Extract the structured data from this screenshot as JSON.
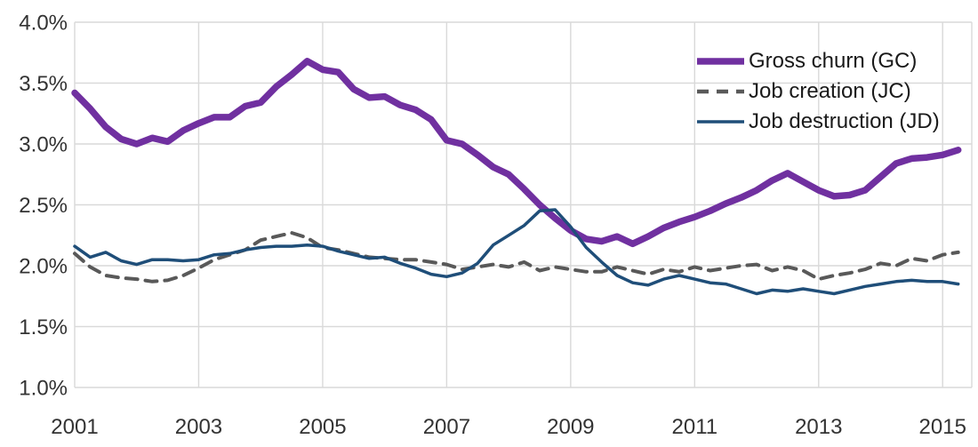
{
  "chart_data": {
    "type": "line",
    "title": "",
    "x_axis": {
      "tick_labels": [
        "2001",
        "2003",
        "2005",
        "2007",
        "2009",
        "2011",
        "2013",
        "2015"
      ],
      "tick_values": [
        2001,
        2003,
        2005,
        2007,
        2009,
        2011,
        2013,
        2015
      ],
      "min": 2001,
      "max": 2015.47,
      "grid": true
    },
    "y_axis": {
      "tick_labels": [
        "4.0%",
        "3.5%",
        "3.0%",
        "2.5%",
        "2.0%",
        "1.5%",
        "1.0%"
      ],
      "tick_values": [
        4.0,
        3.5,
        3.0,
        2.5,
        2.0,
        1.5,
        1.0
      ],
      "min": 1.0,
      "max": 4.0,
      "unit": "%",
      "grid": true
    },
    "x_start": 2001.0,
    "x_step": 0.25,
    "legend_position": "top-right",
    "series": [
      {
        "name": "Gross churn (GC)",
        "color": "#7030A0",
        "line_style": "solid",
        "line_width": 7.5,
        "values": [
          3.42,
          3.29,
          3.14,
          3.04,
          3.0,
          3.05,
          3.02,
          3.11,
          3.17,
          3.22,
          3.22,
          3.31,
          3.34,
          3.47,
          3.57,
          3.68,
          3.61,
          3.59,
          3.45,
          3.38,
          3.39,
          3.32,
          3.28,
          3.2,
          3.03,
          3.0,
          2.91,
          2.81,
          2.75,
          2.63,
          2.5,
          2.39,
          2.29,
          2.22,
          2.2,
          2.24,
          2.18,
          2.24,
          2.31,
          2.36,
          2.4,
          2.45,
          2.51,
          2.56,
          2.62,
          2.7,
          2.76,
          2.69,
          2.62,
          2.57,
          2.58,
          2.62,
          2.73,
          2.84,
          2.88,
          2.89,
          2.91,
          2.95
        ]
      },
      {
        "name": "Job creation (JC)",
        "color": "#595959",
        "line_style": "dashed",
        "line_width": 4,
        "values": [
          2.1,
          1.99,
          1.92,
          1.9,
          1.89,
          1.87,
          1.88,
          1.92,
          1.98,
          2.05,
          2.09,
          2.13,
          2.21,
          2.24,
          2.27,
          2.23,
          2.15,
          2.13,
          2.1,
          2.07,
          2.06,
          2.05,
          2.05,
          2.03,
          2.01,
          1.97,
          1.99,
          2.01,
          1.99,
          2.03,
          1.96,
          1.99,
          1.97,
          1.95,
          1.95,
          1.99,
          1.96,
          1.93,
          1.97,
          1.95,
          1.99,
          1.96,
          1.98,
          2.0,
          2.01,
          1.96,
          1.99,
          1.96,
          1.89,
          1.92,
          1.94,
          1.97,
          2.02,
          2.0,
          2.06,
          2.04,
          2.09,
          2.11
        ]
      },
      {
        "name": "Job destruction (JD)",
        "color": "#1F4E79",
        "line_style": "solid",
        "line_width": 3.5,
        "values": [
          2.16,
          2.07,
          2.11,
          2.04,
          2.01,
          2.05,
          2.05,
          2.04,
          2.05,
          2.09,
          2.1,
          2.13,
          2.15,
          2.16,
          2.16,
          2.17,
          2.16,
          2.12,
          2.09,
          2.06,
          2.07,
          2.02,
          1.98,
          1.93,
          1.91,
          1.94,
          2.02,
          2.17,
          2.25,
          2.33,
          2.45,
          2.46,
          2.32,
          2.15,
          2.03,
          1.92,
          1.86,
          1.84,
          1.89,
          1.92,
          1.89,
          1.86,
          1.85,
          1.81,
          1.77,
          1.8,
          1.79,
          1.81,
          1.79,
          1.77,
          1.8,
          1.83,
          1.85,
          1.87,
          1.88,
          1.87,
          1.87,
          1.85
        ]
      }
    ]
  },
  "legend": {
    "items": [
      {
        "label": "Gross churn (GC)",
        "swatch": "thick-solid-line-swatch"
      },
      {
        "label": "Job creation (JC)",
        "swatch": "dashed-line-swatch"
      },
      {
        "label": "Job destruction (JD)",
        "swatch": "thin-solid-line-swatch"
      }
    ]
  },
  "colors": {
    "background": "#FFFFFF",
    "grid": "#D9D9D9",
    "axis_text": "#333333",
    "gross_churn": "#7030A0",
    "job_creation": "#595959",
    "job_destruction": "#1F4E79"
  }
}
